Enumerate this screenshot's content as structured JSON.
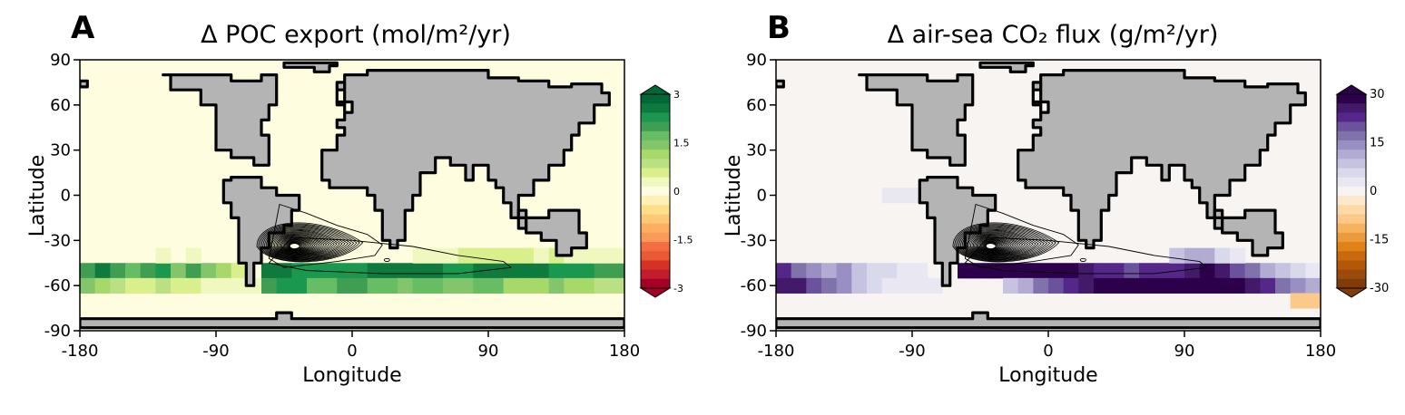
{
  "chart_data": [
    {
      "type": "heatmap",
      "panel_letter": "A",
      "title": "Δ POC export (mol/m²/yr)",
      "xlabel": "Longitude",
      "ylabel": "Latitude",
      "xlim": [
        -180,
        180
      ],
      "ylim": [
        -90,
        90
      ],
      "x_ticks": [
        "-180",
        "-90",
        "0",
        "90",
        "180"
      ],
      "y_ticks": [
        "90",
        "60",
        "30",
        "0",
        "-30",
        "-60",
        "-90"
      ],
      "colorbar": {
        "range": [
          -3,
          3
        ],
        "tick_labels": [
          "3",
          "1.5",
          "0",
          "-1.5",
          "-3"
        ],
        "colors": [
          "#a50026",
          "#c21d2b",
          "#d73027",
          "#e95a34",
          "#f46d43",
          "#fa9a58",
          "#fdae61",
          "#fdc877",
          "#fee08b",
          "#fff0b5",
          "#fffde0",
          "#f0f8c0",
          "#d9ef8b",
          "#bbe083",
          "#a6d96a",
          "#83c56a",
          "#66bd63",
          "#3f9e52",
          "#1a9850",
          "#0e7a3d",
          "#006837"
        ]
      },
      "background_value": 0,
      "cells": [
        {
          "lon": -80,
          "lat": 0,
          "v": 0.25
        },
        {
          "lon": -180,
          "lat": -50,
          "v": 2.0
        },
        {
          "lon": -170,
          "lat": -50,
          "v": 2.5
        },
        {
          "lon": -160,
          "lat": -50,
          "v": 2.0
        },
        {
          "lon": -150,
          "lat": -50,
          "v": 1.6
        },
        {
          "lon": -140,
          "lat": -50,
          "v": 2.1
        },
        {
          "lon": -130,
          "lat": -50,
          "v": 2.3
        },
        {
          "lon": -120,
          "lat": -50,
          "v": 1.5
        },
        {
          "lon": -110,
          "lat": -50,
          "v": 1.9
        },
        {
          "lon": -100,
          "lat": -50,
          "v": 1.4
        },
        {
          "lon": -90,
          "lat": -50,
          "v": 1.1
        },
        {
          "lon": -80,
          "lat": -50,
          "v": 0.6
        },
        {
          "lon": -60,
          "lat": -50,
          "v": 2.6
        },
        {
          "lon": -50,
          "lat": -50,
          "v": 2.6
        },
        {
          "lon": -40,
          "lat": -50,
          "v": 2.4
        },
        {
          "lon": -30,
          "lat": -50,
          "v": 2.4
        },
        {
          "lon": -20,
          "lat": -50,
          "v": 2.2
        },
        {
          "lon": -10,
          "lat": -50,
          "v": 2.2
        },
        {
          "lon": 0,
          "lat": -50,
          "v": 2.4
        },
        {
          "lon": 10,
          "lat": -50,
          "v": 2.5
        },
        {
          "lon": 20,
          "lat": -50,
          "v": 2.6
        },
        {
          "lon": 30,
          "lat": -50,
          "v": 2.7
        },
        {
          "lon": 40,
          "lat": -50,
          "v": 2.6
        },
        {
          "lon": 50,
          "lat": -50,
          "v": 2.6
        },
        {
          "lon": 60,
          "lat": -50,
          "v": 2.4
        },
        {
          "lon": 70,
          "lat": -50,
          "v": 2.4
        },
        {
          "lon": 80,
          "lat": -50,
          "v": 2.5
        },
        {
          "lon": 90,
          "lat": -50,
          "v": 2.5
        },
        {
          "lon": 100,
          "lat": -50,
          "v": 2.6
        },
        {
          "lon": 110,
          "lat": -50,
          "v": 2.7
        },
        {
          "lon": 120,
          "lat": -50,
          "v": 2.6
        },
        {
          "lon": 130,
          "lat": -50,
          "v": 2.4
        },
        {
          "lon": 140,
          "lat": -50,
          "v": 2.3
        },
        {
          "lon": 150,
          "lat": -50,
          "v": 2.2
        },
        {
          "lon": 160,
          "lat": -50,
          "v": 2.0
        },
        {
          "lon": 170,
          "lat": -50,
          "v": 1.9
        },
        {
          "lon": -180,
          "lat": -60,
          "v": 1.3
        },
        {
          "lon": -170,
          "lat": -60,
          "v": 1.1
        },
        {
          "lon": -160,
          "lat": -60,
          "v": 0.9
        },
        {
          "lon": -150,
          "lat": -60,
          "v": 0.7
        },
        {
          "lon": -140,
          "lat": -60,
          "v": 0.6
        },
        {
          "lon": -130,
          "lat": -60,
          "v": 0.9
        },
        {
          "lon": -120,
          "lat": -60,
          "v": 0.7
        },
        {
          "lon": -110,
          "lat": -60,
          "v": 0.5
        },
        {
          "lon": -100,
          "lat": -60,
          "v": 0.4
        },
        {
          "lon": -90,
          "lat": -60,
          "v": 0.3
        },
        {
          "lon": -80,
          "lat": -60,
          "v": 0.3
        },
        {
          "lon": -70,
          "lat": -60,
          "v": 0.4
        },
        {
          "lon": -60,
          "lat": -60,
          "v": 1.9
        },
        {
          "lon": -50,
          "lat": -60,
          "v": 2.2
        },
        {
          "lon": -40,
          "lat": -60,
          "v": 2.2
        },
        {
          "lon": -30,
          "lat": -60,
          "v": 1.8
        },
        {
          "lon": -20,
          "lat": -60,
          "v": 1.7
        },
        {
          "lon": -10,
          "lat": -60,
          "v": 1.9
        },
        {
          "lon": 0,
          "lat": -60,
          "v": 2.0
        },
        {
          "lon": 10,
          "lat": -60,
          "v": 1.8
        },
        {
          "lon": 20,
          "lat": -60,
          "v": 1.6
        },
        {
          "lon": 30,
          "lat": -60,
          "v": 1.4
        },
        {
          "lon": 40,
          "lat": -60,
          "v": 1.6
        },
        {
          "lon": 50,
          "lat": -60,
          "v": 1.7
        },
        {
          "lon": 60,
          "lat": -60,
          "v": 1.3
        },
        {
          "lon": 70,
          "lat": -60,
          "v": 1.5
        },
        {
          "lon": 80,
          "lat": -60,
          "v": 1.6
        },
        {
          "lon": 90,
          "lat": -60,
          "v": 1.7
        },
        {
          "lon": 100,
          "lat": -60,
          "v": 1.2
        },
        {
          "lon": 110,
          "lat": -60,
          "v": 1.0
        },
        {
          "lon": 120,
          "lat": -60,
          "v": 1.1
        },
        {
          "lon": 130,
          "lat": -60,
          "v": 1.3
        },
        {
          "lon": 140,
          "lat": -60,
          "v": 1.2
        },
        {
          "lon": 150,
          "lat": -60,
          "v": 1.0
        },
        {
          "lon": 160,
          "lat": -60,
          "v": 0.9
        },
        {
          "lon": 170,
          "lat": -60,
          "v": 0.8
        },
        {
          "lon": -130,
          "lat": -40,
          "v": 0.3
        },
        {
          "lon": -110,
          "lat": -40,
          "v": 0.25
        },
        {
          "lon": 40,
          "lat": -40,
          "v": 0.3
        },
        {
          "lon": 50,
          "lat": -40,
          "v": 0.4
        },
        {
          "lon": 60,
          "lat": -40,
          "v": 0.35
        },
        {
          "lon": 70,
          "lat": -40,
          "v": 0.5
        },
        {
          "lon": 80,
          "lat": -40,
          "v": 0.6
        },
        {
          "lon": 90,
          "lat": -40,
          "v": 0.7
        },
        {
          "lon": 100,
          "lat": -40,
          "v": 0.6
        },
        {
          "lon": 110,
          "lat": -40,
          "v": 0.5
        },
        {
          "lon": 120,
          "lat": -40,
          "v": 0.4
        },
        {
          "lon": 130,
          "lat": -40,
          "v": 0.5
        },
        {
          "lon": 140,
          "lat": -40,
          "v": 0.4
        },
        {
          "lon": 150,
          "lat": -40,
          "v": 0.3
        },
        {
          "lon": 160,
          "lat": -40,
          "v": 0.3
        },
        {
          "lon": 170,
          "lat": -40,
          "v": 0.25
        }
      ]
    },
    {
      "type": "heatmap",
      "panel_letter": "B",
      "title": "Δ air-sea CO₂ flux (g/m²/yr)",
      "xlabel": "Longitude",
      "ylabel": "Latitude",
      "xlim": [
        -180,
        180
      ],
      "ylim": [
        -90,
        90
      ],
      "x_ticks": [
        "-180",
        "-90",
        "0",
        "90",
        "180"
      ],
      "y_ticks": [
        "90",
        "60",
        "30",
        "0",
        "-30",
        "-60",
        "-90"
      ],
      "colorbar": {
        "range": [
          -30,
          30
        ],
        "tick_labels": [
          "30",
          "15",
          "0",
          "-15",
          "-30"
        ],
        "colors": [
          "#7f3b08",
          "#9a4a0c",
          "#b35806",
          "#c96a10",
          "#e08214",
          "#eb9a3e",
          "#f5b25f",
          "#fbc98a",
          "#fdd9a8",
          "#fbe8cf",
          "#f7f4f1",
          "#e9e8f2",
          "#d8daeb",
          "#c6c3e0",
          "#b2abd2",
          "#9a8fc2",
          "#8073ac",
          "#6a539c",
          "#542788",
          "#431a6a",
          "#2d004b"
        ]
      },
      "background_value": 0,
      "cells": [
        {
          "lon": -110,
          "lat": 0,
          "v": 3
        },
        {
          "lon": -100,
          "lat": 0,
          "v": 3
        },
        {
          "lon": -90,
          "lat": 0,
          "v": 3
        },
        {
          "lon": -180,
          "lat": -50,
          "v": 22
        },
        {
          "lon": -170,
          "lat": -50,
          "v": 18
        },
        {
          "lon": -160,
          "lat": -50,
          "v": 15
        },
        {
          "lon": -150,
          "lat": -50,
          "v": 12
        },
        {
          "lon": -140,
          "lat": -50,
          "v": 14
        },
        {
          "lon": -130,
          "lat": -50,
          "v": 9
        },
        {
          "lon": -120,
          "lat": -50,
          "v": 5
        },
        {
          "lon": -110,
          "lat": -50,
          "v": 7
        },
        {
          "lon": -100,
          "lat": -50,
          "v": 4
        },
        {
          "lon": -90,
          "lat": -50,
          "v": 3
        },
        {
          "lon": -60,
          "lat": -50,
          "v": 28
        },
        {
          "lon": -50,
          "lat": -50,
          "v": 29
        },
        {
          "lon": -40,
          "lat": -50,
          "v": 29
        },
        {
          "lon": -30,
          "lat": -50,
          "v": 29
        },
        {
          "lon": -20,
          "lat": -50,
          "v": 29
        },
        {
          "lon": -10,
          "lat": -50,
          "v": 29
        },
        {
          "lon": 0,
          "lat": -50,
          "v": 29
        },
        {
          "lon": 10,
          "lat": -50,
          "v": 29
        },
        {
          "lon": 20,
          "lat": -50,
          "v": 27
        },
        {
          "lon": 30,
          "lat": -50,
          "v": 24
        },
        {
          "lon": 40,
          "lat": -50,
          "v": 22
        },
        {
          "lon": 50,
          "lat": -50,
          "v": 21
        },
        {
          "lon": 60,
          "lat": -50,
          "v": 22
        },
        {
          "lon": 70,
          "lat": -50,
          "v": 23
        },
        {
          "lon": 80,
          "lat": -50,
          "v": 24
        },
        {
          "lon": 90,
          "lat": -50,
          "v": 27
        },
        {
          "lon": 100,
          "lat": -50,
          "v": 29
        },
        {
          "lon": 110,
          "lat": -50,
          "v": 27
        },
        {
          "lon": 120,
          "lat": -50,
          "v": 21
        },
        {
          "lon": 130,
          "lat": -50,
          "v": 17
        },
        {
          "lon": 140,
          "lat": -50,
          "v": 12
        },
        {
          "lon": 150,
          "lat": -50,
          "v": 8
        },
        {
          "lon": 160,
          "lat": -50,
          "v": 5
        },
        {
          "lon": 170,
          "lat": -50,
          "v": 4
        },
        {
          "lon": -180,
          "lat": -60,
          "v": 26
        },
        {
          "lon": -170,
          "lat": -60,
          "v": 25
        },
        {
          "lon": -160,
          "lat": -60,
          "v": 20
        },
        {
          "lon": -150,
          "lat": -60,
          "v": 17
        },
        {
          "lon": -140,
          "lat": -60,
          "v": 14
        },
        {
          "lon": -130,
          "lat": -60,
          "v": 9
        },
        {
          "lon": -120,
          "lat": -60,
          "v": 5
        },
        {
          "lon": -110,
          "lat": -60,
          "v": 4
        },
        {
          "lon": -100,
          "lat": -60,
          "v": 3
        },
        {
          "lon": -90,
          "lat": -60,
          "v": 3
        },
        {
          "lon": -80,
          "lat": -60,
          "v": 2
        },
        {
          "lon": -30,
          "lat": -60,
          "v": 8
        },
        {
          "lon": -20,
          "lat": -60,
          "v": 12
        },
        {
          "lon": -10,
          "lat": -60,
          "v": 16
        },
        {
          "lon": 0,
          "lat": -60,
          "v": 20
        },
        {
          "lon": 10,
          "lat": -60,
          "v": 24
        },
        {
          "lon": 20,
          "lat": -60,
          "v": 26
        },
        {
          "lon": 30,
          "lat": -60,
          "v": 28
        },
        {
          "lon": 40,
          "lat": -60,
          "v": 29
        },
        {
          "lon": 50,
          "lat": -60,
          "v": 29
        },
        {
          "lon": 60,
          "lat": -60,
          "v": 29
        },
        {
          "lon": 70,
          "lat": -60,
          "v": 29
        },
        {
          "lon": 80,
          "lat": -60,
          "v": 29
        },
        {
          "lon": 90,
          "lat": -60,
          "v": 29
        },
        {
          "lon": 100,
          "lat": -60,
          "v": 29
        },
        {
          "lon": 110,
          "lat": -60,
          "v": 29
        },
        {
          "lon": 120,
          "lat": -60,
          "v": 28
        },
        {
          "lon": 130,
          "lat": -60,
          "v": 25
        },
        {
          "lon": 140,
          "lat": -60,
          "v": 22
        },
        {
          "lon": 150,
          "lat": -60,
          "v": 18
        },
        {
          "lon": 160,
          "lat": -60,
          "v": 14
        },
        {
          "lon": 170,
          "lat": -60,
          "v": 11
        },
        {
          "lon": 80,
          "lat": -40,
          "v": 8
        },
        {
          "lon": 90,
          "lat": -40,
          "v": 12
        },
        {
          "lon": 100,
          "lat": -40,
          "v": 10
        },
        {
          "lon": 110,
          "lat": -40,
          "v": 7
        },
        {
          "lon": 120,
          "lat": -40,
          "v": 4
        },
        {
          "lon": 160,
          "lat": -70,
          "v": -10
        },
        {
          "lon": 170,
          "lat": -70,
          "v": -10
        }
      ]
    }
  ],
  "contour_shared": {
    "center": [
      -38,
      -34
    ],
    "levels": 28,
    "strong_contour_lon_range": [
      -60,
      0
    ]
  }
}
